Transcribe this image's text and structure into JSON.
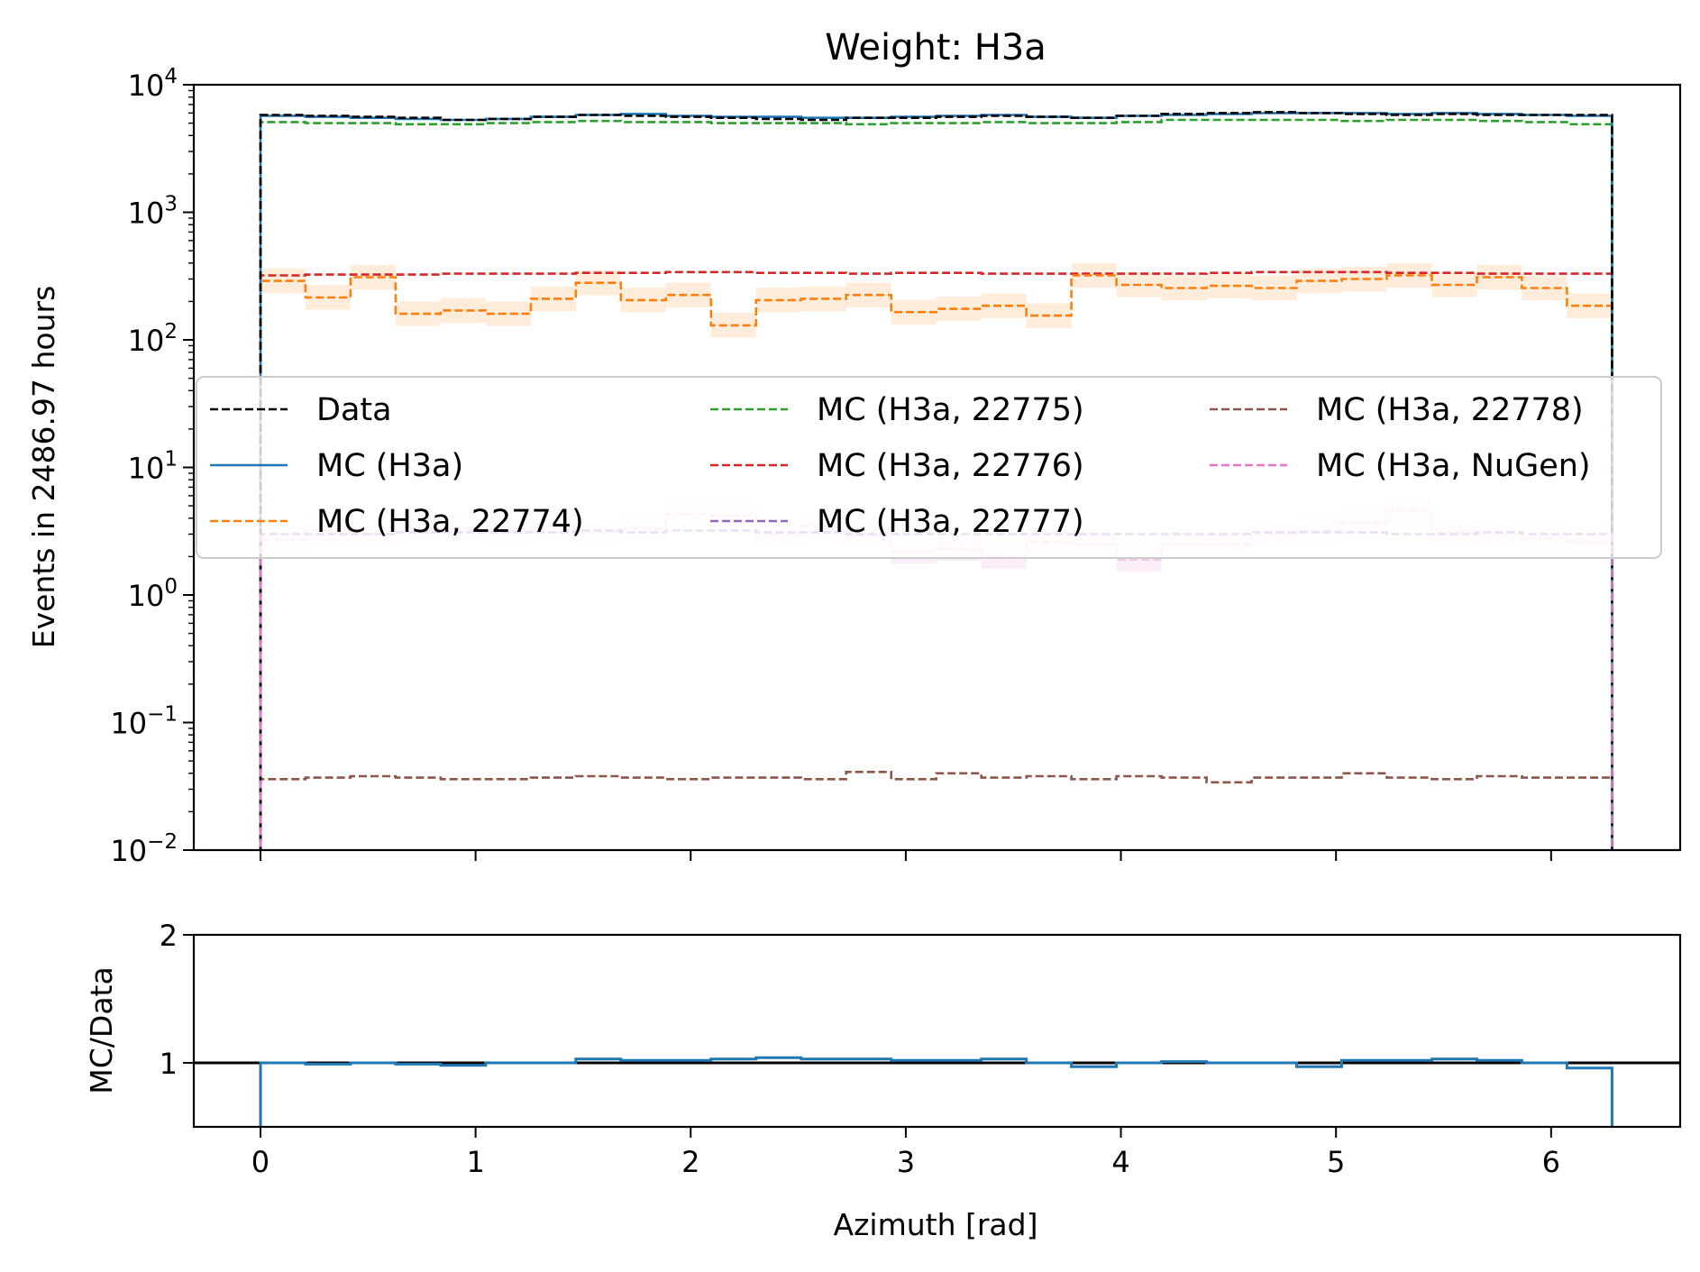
{
  "chart_data": [
    {
      "type": "line",
      "subtype": "step-histogram",
      "title": "Weight: H3a",
      "xlabel": "",
      "ylabel": "Events in 2486.97 hours",
      "yscale": "log",
      "ylim": [
        0.01,
        10000
      ],
      "xlim": [
        -0.31,
        6.6
      ],
      "x_tick_labels": [
        "0",
        "1",
        "2",
        "3",
        "4",
        "5",
        "6"
      ],
      "y_ticks": [
        {
          "base": "10",
          "exp": "4"
        },
        {
          "base": "10",
          "exp": "3"
        },
        {
          "base": "10",
          "exp": "2"
        },
        {
          "base": "10",
          "exp": "1"
        },
        {
          "base": "10",
          "exp": "0"
        },
        {
          "base": "10",
          "exp": "−1"
        },
        {
          "base": "10",
          "exp": "−2"
        }
      ],
      "bin_edges": [
        0,
        0.2094,
        0.4189,
        0.6283,
        0.8378,
        1.0472,
        1.2566,
        1.4661,
        1.6755,
        1.885,
        2.0944,
        2.3038,
        2.5133,
        2.7227,
        2.9322,
        3.1416,
        3.351,
        3.5605,
        3.7699,
        3.9794,
        4.1888,
        4.3982,
        4.6077,
        4.8171,
        5.0265,
        5.236,
        5.4454,
        5.6549,
        5.8643,
        6.0737,
        6.2832
      ],
      "legend": {
        "placement": "center",
        "columns": 3,
        "entries": [
          {
            "label": "Data",
            "color": "#000000",
            "style": "dashed"
          },
          {
            "label": "MC (H3a)",
            "color": "#1f77b4",
            "style": "solid"
          },
          {
            "label": "MC (H3a, 22774)",
            "color": "#ff7f0e",
            "style": "dashed"
          },
          {
            "label": "MC (H3a, 22775)",
            "color": "#2ca02c",
            "style": "dashed"
          },
          {
            "label": "MC (H3a, 22776)",
            "color": "#d62728",
            "style": "dashed"
          },
          {
            "label": "MC (H3a, 22777)",
            "color": "#9467bd",
            "style": "dashed"
          },
          {
            "label": "MC (H3a, 22778)",
            "color": "#8c564b",
            "style": "dashed"
          },
          {
            "label": "MC (H3a, NuGen)",
            "color": "#e377c2",
            "style": "dashed"
          }
        ]
      },
      "series": [
        {
          "name": "Data",
          "color": "#000000",
          "style": "dashed",
          "values": [
            5800,
            5700,
            5600,
            5500,
            5300,
            5400,
            5600,
            5800,
            5700,
            5600,
            5500,
            5400,
            5300,
            5500,
            5500,
            5600,
            5700,
            5600,
            5500,
            5700,
            5900,
            6000,
            6100,
            6000,
            5900,
            5800,
            5900,
            5800,
            5800,
            5800
          ]
        },
        {
          "name": "MC (H3a)",
          "color": "#1f77b4",
          "style": "solid",
          "values": [
            5700,
            5600,
            5500,
            5400,
            5300,
            5400,
            5600,
            5800,
            5900,
            5700,
            5600,
            5600,
            5500,
            5500,
            5600,
            5700,
            5800,
            5600,
            5500,
            5700,
            5800,
            5900,
            6000,
            6000,
            6000,
            5900,
            6000,
            5900,
            5800,
            5700
          ]
        },
        {
          "name": "MC (H3a, 22774)",
          "color": "#ff7f0e",
          "style": "dashed",
          "band": true,
          "values": [
            290,
            215,
            310,
            160,
            170,
            160,
            210,
            280,
            205,
            225,
            130,
            205,
            210,
            225,
            165,
            175,
            185,
            155,
            320,
            270,
            255,
            265,
            255,
            290,
            300,
            320,
            270,
            310,
            255,
            185
          ]
        },
        {
          "name": "MC (H3a, 22775)",
          "color": "#2ca02c",
          "style": "dashed",
          "values": [
            5100,
            5000,
            5000,
            4900,
            4900,
            5000,
            5100,
            5200,
            5100,
            5100,
            5000,
            5000,
            5000,
            4900,
            5000,
            5000,
            5100,
            5000,
            5000,
            5100,
            5300,
            5300,
            5300,
            5300,
            5200,
            5300,
            5300,
            5200,
            5100,
            4900
          ]
        },
        {
          "name": "MC (H3a, 22776)",
          "color": "#d62728",
          "style": "dashed",
          "values": [
            320,
            325,
            325,
            325,
            330,
            330,
            330,
            335,
            335,
            340,
            340,
            335,
            335,
            330,
            335,
            335,
            330,
            330,
            330,
            330,
            330,
            335,
            340,
            340,
            340,
            335,
            335,
            330,
            330,
            330
          ]
        },
        {
          "name": "MC (H3a, 22777)",
          "color": "#9467bd",
          "style": "dashed",
          "values": [
            3.0,
            3.0,
            3.0,
            3.1,
            3.1,
            3.1,
            3.1,
            3.2,
            3.1,
            3.2,
            3.2,
            3.1,
            3.1,
            3.0,
            3.0,
            3.0,
            3.0,
            3.0,
            3.0,
            3.0,
            3.0,
            3.0,
            3.1,
            3.1,
            3.1,
            3.0,
            3.0,
            3.1,
            3.0,
            3.0
          ]
        },
        {
          "name": "MC (H3a, 22778)",
          "color": "#8c564b",
          "style": "dashed",
          "values": [
            0.036,
            0.037,
            0.038,
            0.037,
            0.036,
            0.036,
            0.037,
            0.038,
            0.037,
            0.036,
            0.037,
            0.037,
            0.036,
            0.041,
            0.036,
            0.04,
            0.037,
            0.038,
            0.036,
            0.038,
            0.037,
            0.034,
            0.037,
            0.037,
            0.04,
            0.037,
            0.036,
            0.038,
            0.037,
            0.037
          ]
        },
        {
          "name": "MC (H3a, NuGen)",
          "color": "#e377c2",
          "style": "dashed",
          "band": true,
          "faded": true,
          "values": [
            2.7,
            3.2,
            3.0,
            3.4,
            3.3,
            3.1,
            3.5,
            3.1,
            3.3,
            4.3,
            4.2,
            3.0,
            3.5,
            2.9,
            2.2,
            2.3,
            2.0,
            2.6,
            2.5,
            1.9,
            2.5,
            2.5,
            3.0,
            3.2,
            3.7,
            4.6,
            3.1,
            3.0,
            2.8,
            2.6
          ]
        }
      ]
    },
    {
      "type": "line",
      "subtype": "step-ratio",
      "xlabel": "Azimuth [rad]",
      "ylabel": "MC/Data",
      "ylim": [
        0.5,
        2
      ],
      "xlim": [
        -0.31,
        6.6
      ],
      "x_tick_labels": [
        "0",
        "1",
        "2",
        "3",
        "4",
        "5",
        "6"
      ],
      "y_tick_labels": [
        "1",
        "2"
      ],
      "reference_line": 1,
      "series": [
        {
          "name": "MC (H3a)/Data",
          "color": "#1f77b4",
          "style": "solid",
          "values": [
            1.0,
            0.99,
            1.0,
            0.99,
            0.98,
            1.0,
            1.0,
            1.03,
            1.02,
            1.02,
            1.03,
            1.04,
            1.03,
            1.03,
            1.02,
            1.02,
            1.03,
            1.0,
            0.97,
            1.0,
            1.01,
            1.0,
            1.0,
            0.97,
            1.02,
            1.02,
            1.03,
            1.02,
            1.0,
            0.96
          ]
        }
      ]
    }
  ]
}
